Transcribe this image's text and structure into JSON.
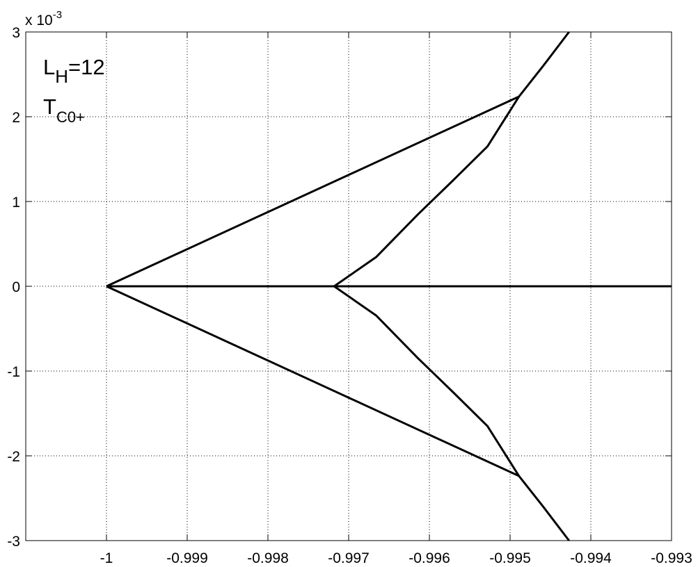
{
  "chart_data": {
    "type": "line",
    "y_multiplier": {
      "base": "x 10",
      "exponent": "-3"
    },
    "annotations": [
      {
        "text": "L",
        "sub": "H",
        "suffix": "=12"
      },
      {
        "text": "T",
        "sub": "C0+"
      }
    ],
    "xlim": [
      -1.001,
      -0.993
    ],
    "ylim": [
      -3,
      3
    ],
    "xticks": [
      -1,
      -0.999,
      -0.998,
      -0.997,
      -0.996,
      -0.995,
      -0.994,
      -0.993
    ],
    "yticks": [
      -3,
      -2,
      -1,
      0,
      1,
      2,
      3
    ],
    "grid": true,
    "series": [
      {
        "color": "#000000",
        "x": [
          -1,
          -0.993
        ],
        "values": [
          0,
          0
        ]
      },
      {
        "color": "#000000",
        "x": [
          -1,
          -0.99489
        ],
        "values": [
          0,
          2.238
        ]
      },
      {
        "color": "#000000",
        "x": [
          -1,
          -0.99489
        ],
        "values": [
          0,
          -2.238
        ]
      },
      {
        "color": "#000000",
        "x": [
          -0.99718,
          -0.99666,
          -0.99614,
          -0.99571,
          -0.99528,
          -0.99489,
          -0.99459,
          -0.99427
        ],
        "values": [
          0,
          0.344,
          0.85,
          1.246,
          1.65,
          2.238,
          2.6,
          3
        ]
      },
      {
        "color": "#000000",
        "x": [
          -0.99718,
          -0.99666,
          -0.99614,
          -0.99571,
          -0.99528,
          -0.99489,
          -0.99459,
          -0.99427
        ],
        "values": [
          0,
          -0.344,
          -0.85,
          -1.246,
          -1.65,
          -2.238,
          -2.6,
          -3
        ]
      }
    ]
  }
}
